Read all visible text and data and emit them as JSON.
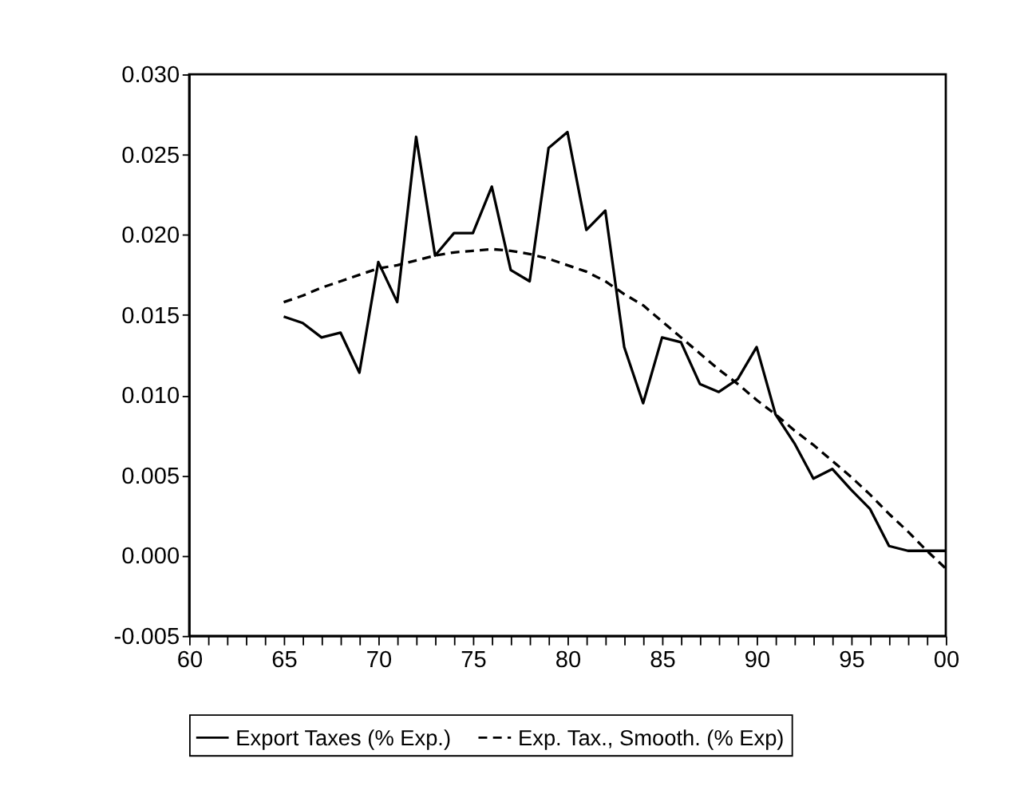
{
  "chart_data": {
    "type": "line",
    "x": [
      1965,
      1966,
      1967,
      1968,
      1969,
      1970,
      1971,
      1972,
      1973,
      1974,
      1975,
      1976,
      1977,
      1978,
      1979,
      1980,
      1981,
      1982,
      1983,
      1984,
      1985,
      1986,
      1987,
      1988,
      1989,
      1990,
      1991,
      1992,
      1993,
      1994,
      1995,
      1996,
      1997,
      1998,
      1999,
      2000
    ],
    "series": [
      {
        "name": "Export Taxes (% Exp.)",
        "color": "#000000",
        "line_style": "solid",
        "values": [
          0.0149,
          0.0145,
          0.0136,
          0.0139,
          0.0114,
          0.0183,
          0.0158,
          0.0261,
          0.0187,
          0.0201,
          0.0201,
          0.023,
          0.0178,
          0.0171,
          0.0254,
          0.0264,
          0.0203,
          0.0215,
          0.013,
          0.0095,
          0.0136,
          0.0133,
          0.0107,
          0.0102,
          0.011,
          0.013,
          0.0088,
          0.007,
          0.0048,
          0.0054,
          0.0041,
          0.0029,
          0.0006,
          0.0003,
          0.0003,
          0.0003
        ]
      },
      {
        "name": "Exp. Tax., Smooth. (% Exp)",
        "color": "#000000",
        "line_style": "dashed",
        "values": [
          0.0158,
          0.0162,
          0.0167,
          0.0171,
          0.0175,
          0.0179,
          0.0181,
          0.0184,
          0.0187,
          0.0189,
          0.019,
          0.0191,
          0.019,
          0.0188,
          0.0185,
          0.0181,
          0.0177,
          0.0171,
          0.0163,
          0.0156,
          0.0146,
          0.0136,
          0.0126,
          0.0116,
          0.0107,
          0.0097,
          0.0088,
          0.0078,
          0.0069,
          0.0059,
          0.0049,
          0.0038,
          0.0026,
          0.0015,
          0.0003,
          -0.0008
        ]
      }
    ],
    "xlim": [
      1960,
      2000
    ],
    "xticks": [
      {
        "value": 1960,
        "label": "60"
      },
      {
        "value": 1961,
        "label": null
      },
      {
        "value": 1962,
        "label": null
      },
      {
        "value": 1963,
        "label": null
      },
      {
        "value": 1964,
        "label": null
      },
      {
        "value": 1965,
        "label": "65"
      },
      {
        "value": 1966,
        "label": null
      },
      {
        "value": 1967,
        "label": null
      },
      {
        "value": 1968,
        "label": null
      },
      {
        "value": 1969,
        "label": null
      },
      {
        "value": 1970,
        "label": "70"
      },
      {
        "value": 1971,
        "label": null
      },
      {
        "value": 1972,
        "label": null
      },
      {
        "value": 1973,
        "label": null
      },
      {
        "value": 1974,
        "label": null
      },
      {
        "value": 1975,
        "label": "75"
      },
      {
        "value": 1976,
        "label": null
      },
      {
        "value": 1977,
        "label": null
      },
      {
        "value": 1978,
        "label": null
      },
      {
        "value": 1979,
        "label": null
      },
      {
        "value": 1980,
        "label": "80"
      },
      {
        "value": 1981,
        "label": null
      },
      {
        "value": 1982,
        "label": null
      },
      {
        "value": 1983,
        "label": null
      },
      {
        "value": 1984,
        "label": null
      },
      {
        "value": 1985,
        "label": "85"
      },
      {
        "value": 1986,
        "label": null
      },
      {
        "value": 1987,
        "label": null
      },
      {
        "value": 1988,
        "label": null
      },
      {
        "value": 1989,
        "label": null
      },
      {
        "value": 1990,
        "label": "90"
      },
      {
        "value": 1991,
        "label": null
      },
      {
        "value": 1992,
        "label": null
      },
      {
        "value": 1993,
        "label": null
      },
      {
        "value": 1994,
        "label": null
      },
      {
        "value": 1995,
        "label": "95"
      },
      {
        "value": 1996,
        "label": null
      },
      {
        "value": 1997,
        "label": null
      },
      {
        "value": 1998,
        "label": null
      },
      {
        "value": 1999,
        "label": null
      },
      {
        "value": 2000,
        "label": "00"
      }
    ],
    "ylim": [
      -0.005,
      0.03
    ],
    "yticks": [
      {
        "value": -0.005,
        "label": "-0.005"
      },
      {
        "value": 0.0,
        "label": "0.000"
      },
      {
        "value": 0.005,
        "label": "0.005"
      },
      {
        "value": 0.01,
        "label": "0.010"
      },
      {
        "value": 0.015,
        "label": "0.015"
      },
      {
        "value": 0.02,
        "label": "0.020"
      },
      {
        "value": 0.025,
        "label": "0.025"
      },
      {
        "value": 0.03,
        "label": "0.030"
      }
    ],
    "grid": false,
    "legend": "bottom",
    "marker": "none"
  }
}
